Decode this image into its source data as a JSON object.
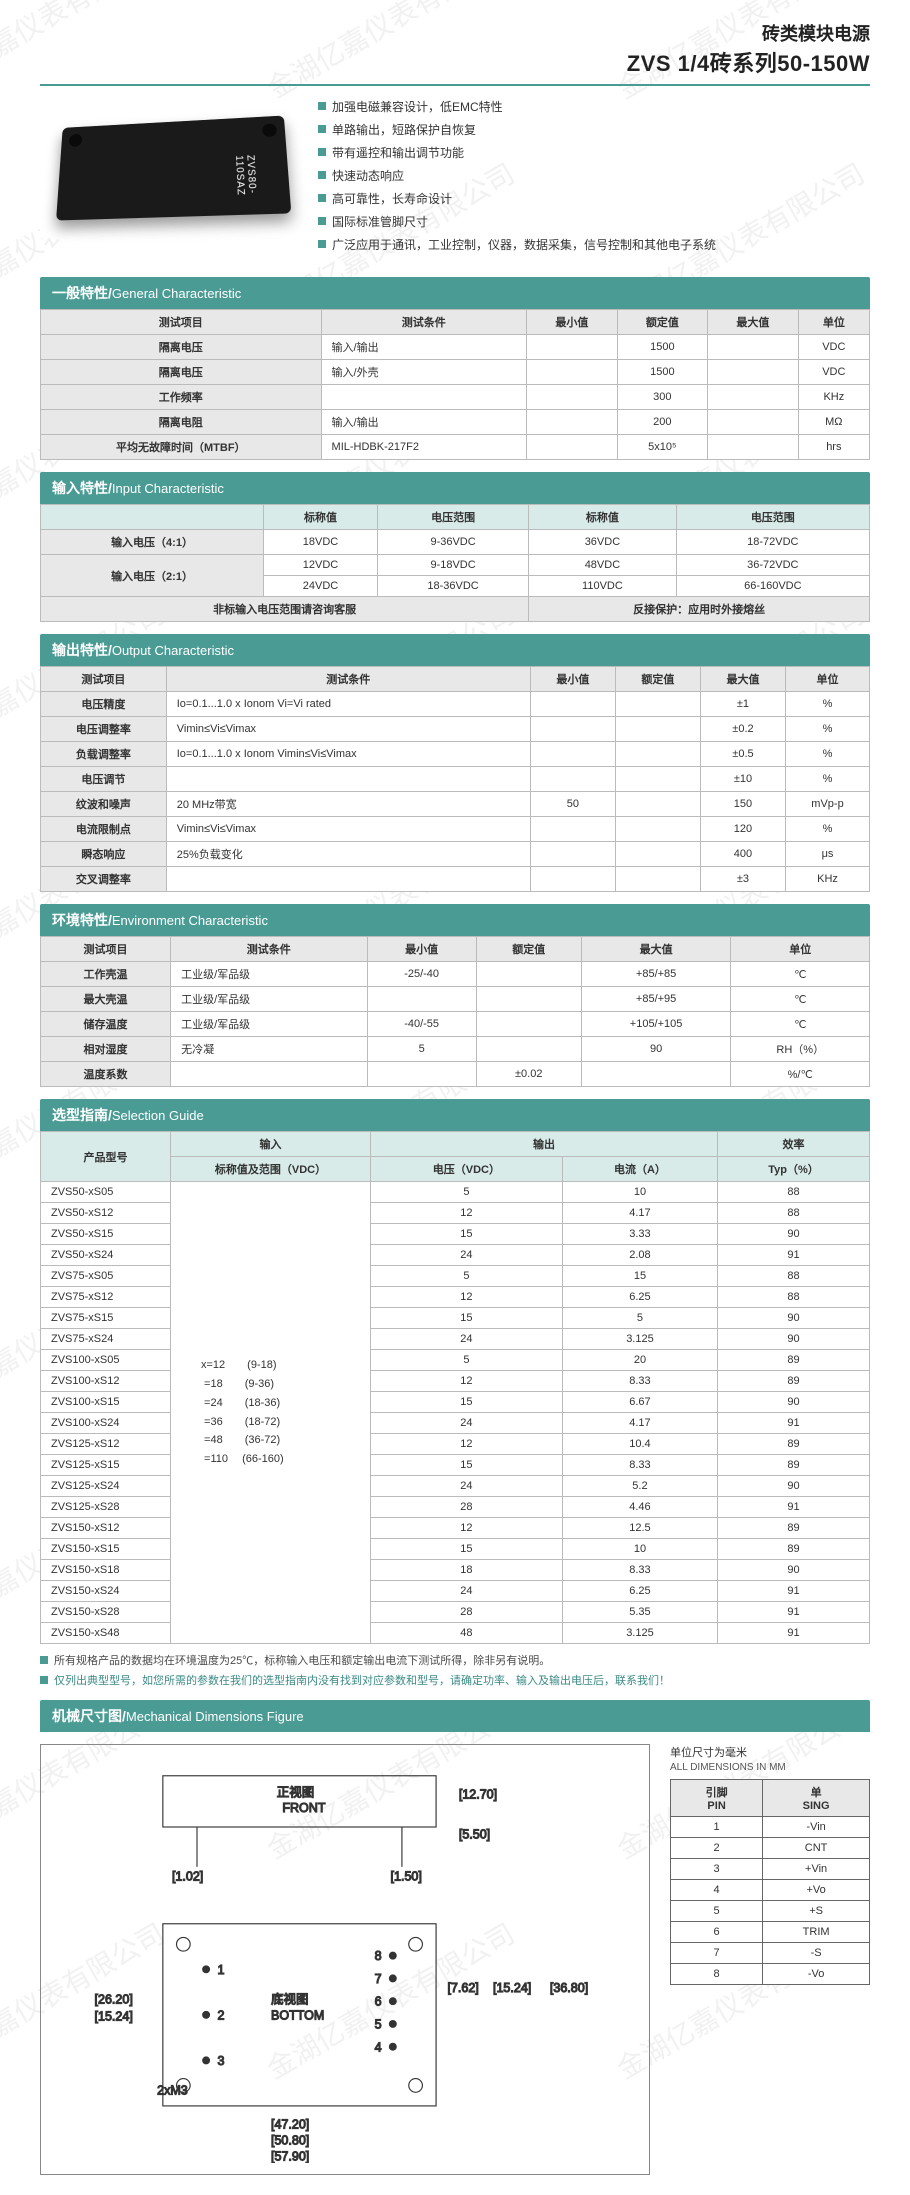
{
  "header": {
    "title1": "砖类模块电源",
    "title2": "ZVS 1/4砖系列50-150W"
  },
  "features": [
    "加强电磁兼容设计，低EMC特性",
    "单路输出，短路保护自恢复",
    "带有遥控和输出调节功能",
    "快速动态响应",
    "高可靠性，长寿命设计",
    "国际标准管脚尺寸",
    "广泛应用于通讯，工业控制，仪器，数据采集，信号控制和其他电子系统"
  ],
  "sections": {
    "general": {
      "zh": "一般特性",
      "en": "General Characteristic"
    },
    "input": {
      "zh": "输入特性",
      "en": "Input Characteristic"
    },
    "output": {
      "zh": "输出特性",
      "en": "Output Characteristic"
    },
    "env": {
      "zh": "环境特性",
      "en": "Environment Characteristic"
    },
    "selection": {
      "zh": "选型指南",
      "en": "Selection Guide"
    },
    "dim": {
      "zh": "机械尺寸图",
      "en": "Mechanical Dimensions Figure"
    }
  },
  "general": {
    "headers": [
      "测试项目",
      "测试条件",
      "最小值",
      "额定值",
      "最大值",
      "单位"
    ],
    "rows": [
      [
        "隔离电压",
        "输入/输出",
        "",
        "1500",
        "",
        "VDC"
      ],
      [
        "隔离电压",
        "输入/外壳",
        "",
        "1500",
        "",
        "VDC"
      ],
      [
        "工作频率",
        "",
        "",
        "300",
        "",
        "KHz"
      ],
      [
        "隔离电阻",
        "输入/输出",
        "",
        "200",
        "",
        "MΩ"
      ],
      [
        "平均无故障时间（MTBF）",
        "MIL-HDBK-217F2",
        "",
        "5x10⁵",
        "",
        "hrs"
      ]
    ]
  },
  "input": {
    "headers": [
      "",
      "标称值",
      "电压范围",
      "标称值",
      "电压范围"
    ],
    "r41": {
      "label": "输入电压（4:1）",
      "v1": "18VDC",
      "r1": "9-36VDC",
      "v2": "36VDC",
      "r2": "18-72VDC"
    },
    "r21a": {
      "label": "输入电压（2:1）",
      "v1": "12VDC",
      "r1": "9-18VDC",
      "v2": "48VDC",
      "r2": "36-72VDC"
    },
    "r21b": {
      "v1": "24VDC",
      "r1": "18-36VDC",
      "v2": "110VDC",
      "r2": "66-160VDC"
    },
    "note1": "非标输入电压范围请咨询客服",
    "note2": "反接保护：应用时外接熔丝"
  },
  "output": {
    "headers": [
      "测试项目",
      "测试条件",
      "最小值",
      "额定值",
      "最大值",
      "单位"
    ],
    "rows": [
      [
        "电压精度",
        "Io=0.1...1.0 x Ionom Vi=Vi rated",
        "",
        "",
        "±1",
        "%"
      ],
      [
        "电压调整率",
        "Vimin≤Vi≤Vimax",
        "",
        "",
        "±0.2",
        "%"
      ],
      [
        "负载调整率",
        "Io=0.1...1.0 x Ionom Vimin≤Vi≤Vimax",
        "",
        "",
        "±0.5",
        "%"
      ],
      [
        "电压调节",
        "",
        "",
        "",
        "±10",
        "%"
      ],
      [
        "纹波和噪声",
        "20 MHz带宽",
        "50",
        "",
        "150",
        "mVp-p"
      ],
      [
        "电流限制点",
        "Vimin≤Vi≤Vimax",
        "",
        "",
        "120",
        "%"
      ],
      [
        "瞬态响应",
        "25%负载变化",
        "",
        "",
        "400",
        "μs"
      ],
      [
        "交叉调整率",
        "",
        "",
        "",
        "±3",
        "KHz"
      ]
    ]
  },
  "env": {
    "headers": [
      "测试项目",
      "测试条件",
      "最小值",
      "额定值",
      "最大值",
      "单位"
    ],
    "rows": [
      [
        "工作壳温",
        "工业级/军品级",
        "-25/-40",
        "",
        "+85/+85",
        "℃"
      ],
      [
        "最大壳温",
        "工业级/军品级",
        "",
        "",
        "+85/+95",
        "℃"
      ],
      [
        "储存温度",
        "工业级/军品级",
        "-40/-55",
        "",
        "+105/+105",
        "℃"
      ],
      [
        "相对湿度",
        "无冷凝",
        "5",
        "",
        "90",
        "RH（%）"
      ],
      [
        "温度系数",
        "",
        "",
        "±0.02",
        "",
        "%/℃"
      ]
    ]
  },
  "selection": {
    "h1": {
      "model": "产品型号",
      "input": "输入",
      "output": "输出",
      "eff": "效率"
    },
    "h2": {
      "range": "标称值及范围（VDC）",
      "v": "电压（VDC）",
      "a": "电流（A）",
      "typ": "Typ（%）"
    },
    "inputRange": [
      "x=12　　(9-18)",
      " =18　　(9-36)",
      " =24　　(18-36)",
      " =36　　(18-72)",
      " =48　　(36-72)",
      " =110　 (66-160)"
    ],
    "rows": [
      [
        "ZVS50-xS05",
        "5",
        "10",
        "88"
      ],
      [
        "ZVS50-xS12",
        "12",
        "4.17",
        "88"
      ],
      [
        "ZVS50-xS15",
        "15",
        "3.33",
        "90"
      ],
      [
        "ZVS50-xS24",
        "24",
        "2.08",
        "91"
      ],
      [
        "ZVS75-xS05",
        "5",
        "15",
        "88"
      ],
      [
        "ZVS75-xS12",
        "12",
        "6.25",
        "88"
      ],
      [
        "ZVS75-xS15",
        "15",
        "5",
        "90"
      ],
      [
        "ZVS75-xS24",
        "24",
        "3.125",
        "90"
      ],
      [
        "ZVS100-xS05",
        "5",
        "20",
        "89"
      ],
      [
        "ZVS100-xS12",
        "12",
        "8.33",
        "89"
      ],
      [
        "ZVS100-xS15",
        "15",
        "6.67",
        "90"
      ],
      [
        "ZVS100-xS24",
        "24",
        "4.17",
        "91"
      ],
      [
        "ZVS125-xS12",
        "12",
        "10.4",
        "89"
      ],
      [
        "ZVS125-xS15",
        "15",
        "8.33",
        "89"
      ],
      [
        "ZVS125-xS24",
        "24",
        "5.2",
        "90"
      ],
      [
        "ZVS125-xS28",
        "28",
        "4.46",
        "91"
      ],
      [
        "ZVS150-xS12",
        "12",
        "12.5",
        "89"
      ],
      [
        "ZVS150-xS15",
        "15",
        "10",
        "89"
      ],
      [
        "ZVS150-xS18",
        "18",
        "8.33",
        "90"
      ],
      [
        "ZVS150-xS24",
        "24",
        "6.25",
        "91"
      ],
      [
        "ZVS150-xS28",
        "28",
        "5.35",
        "91"
      ],
      [
        "ZVS150-xS48",
        "48",
        "3.125",
        "91"
      ]
    ]
  },
  "notes": [
    "所有规格产品的数据均在环境温度为25℃，标称输入电压和额定输出电流下测试所得，除非另有说明。",
    "仅列出典型型号，如您所需的参数在我们的选型指南内没有找到对应参数和型号，请确定功率、输入及输出电压后，联系我们！"
  ],
  "dim": {
    "front": "正视图",
    "frontEn": "FRONT",
    "bottom": "底视图",
    "bottomEn": "BOTTOM",
    "pinTitle": "单位尺寸为毫米",
    "pinTitleEn": "ALL DIMENSIONS IN MM",
    "pinHeaders": {
      "pin": "引脚\nPIN",
      "sing": "单\nSING"
    },
    "pins": [
      [
        "1",
        "-Vin"
      ],
      [
        "2",
        "CNT"
      ],
      [
        "3",
        "+Vin"
      ],
      [
        "4",
        "+Vo"
      ],
      [
        "5",
        "+S"
      ],
      [
        "6",
        "TRIM"
      ],
      [
        "7",
        "-S"
      ],
      [
        "8",
        "-Vo"
      ]
    ],
    "d": {
      "h": "[12.70]",
      "pin": "[5.50]",
      "pl": "[1.02]",
      "pr": "[1.50]",
      "w1": "[26.20]",
      "w2": "[15.24]",
      "m3": "2xM3",
      "rw": "[7.62]",
      "rw2": "[15.24]",
      "rw3": "[36.80]",
      "b1": "[47.20]",
      "b2": "[50.80]",
      "b3": "[57.90]"
    }
  },
  "watermark": "金湖亿嘉仪表有限公司"
}
